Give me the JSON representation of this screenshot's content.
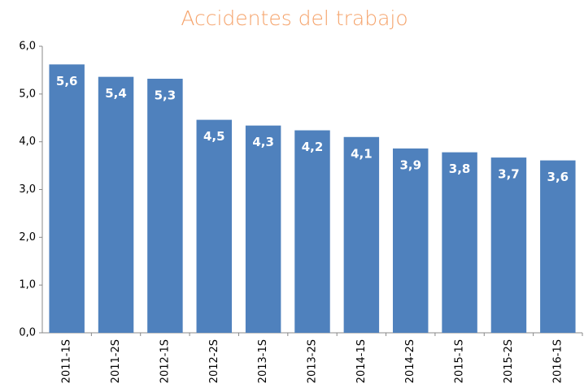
{
  "chart_data": {
    "type": "bar",
    "title": "Accidentes del trabajo",
    "categories": [
      "2011-1S",
      "2011-2S",
      "2012-1S",
      "2012-2S",
      "2013-1S",
      "2013-2S",
      "2014-1S",
      "2014-2S",
      "2015-1S",
      "2015-2S",
      "2016-1S"
    ],
    "values": [
      5.62,
      5.36,
      5.32,
      4.46,
      4.34,
      4.24,
      4.1,
      3.86,
      3.78,
      3.67,
      3.61
    ],
    "value_labels": [
      "5,6",
      "5,4",
      "5,3",
      "4,5",
      "4,3",
      "4,2",
      "4,1",
      "3,9",
      "3,8",
      "3,7",
      "3,6"
    ],
    "color": "#4f81bd",
    "ylim": [
      0,
      6
    ],
    "yticks": [
      {
        "value": 0,
        "label": "0,0"
      },
      {
        "value": 1,
        "label": "1,0"
      },
      {
        "value": 2,
        "label": "2,0"
      },
      {
        "value": 3,
        "label": "3,0"
      },
      {
        "value": 4,
        "label": "4,0"
      },
      {
        "value": 5,
        "label": "5,0"
      },
      {
        "value": 6,
        "label": "6,0"
      }
    ],
    "grid": false
  }
}
